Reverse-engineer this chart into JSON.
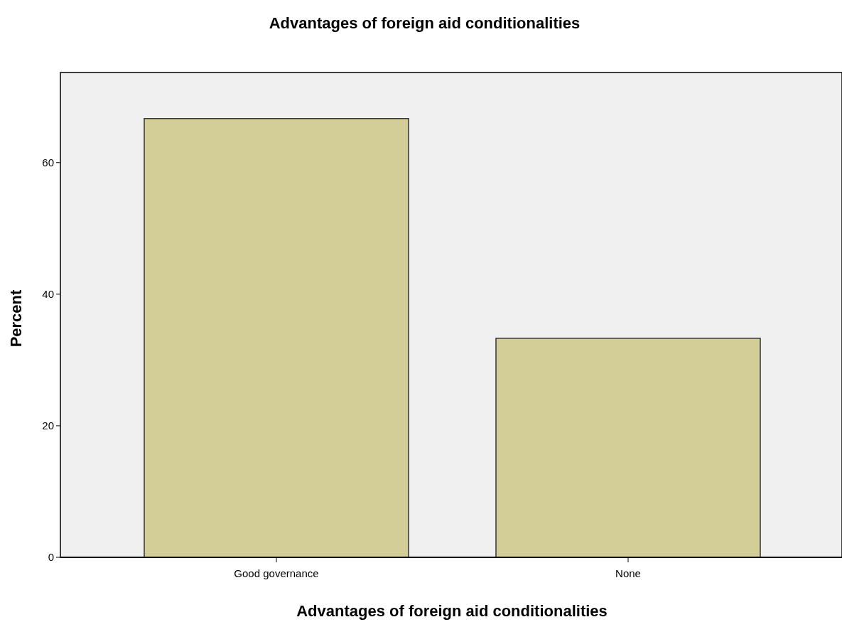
{
  "chart_data": {
    "type": "bar",
    "title": "Advantages of foreign aid conditionalities",
    "xlabel": "Advantages of foreign aid conditionalities",
    "ylabel": "Percent",
    "categories": [
      "Good governance",
      "None"
    ],
    "series": [
      {
        "color": "#d3ce97",
        "values": [
          66.7,
          33.3
        ]
      }
    ],
    "ylim": [
      0,
      73.7
    ],
    "yticks": [
      0,
      20,
      40,
      60
    ],
    "grid": false
  }
}
